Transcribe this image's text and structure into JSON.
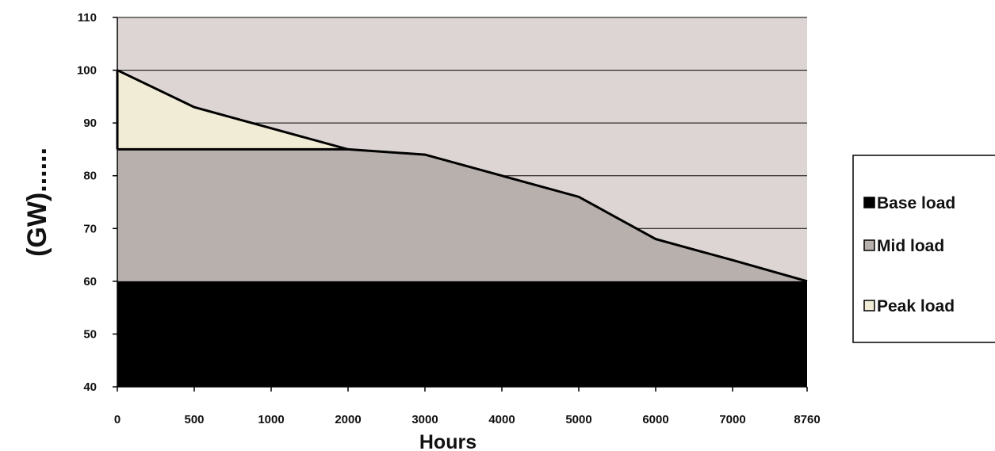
{
  "chart_data": {
    "type": "area",
    "title": "",
    "xlabel": "Hours",
    "ylabel": "(GW)......",
    "x_ticks": [
      0,
      500,
      1000,
      2000,
      3000,
      4000,
      5000,
      6000,
      7000,
      8760
    ],
    "y_ticks": [
      40,
      50,
      60,
      70,
      80,
      90,
      100,
      110
    ],
    "ylim": [
      40,
      110
    ],
    "grid": "horizontal",
    "legend_position": "right",
    "load_curve": {
      "x": [
        0,
        500,
        1000,
        2000,
        3000,
        4000,
        5000,
        6000,
        7000,
        8760
      ],
      "y": [
        100,
        93,
        89,
        85,
        84,
        80,
        76,
        68,
        64,
        60
      ]
    },
    "series": [
      {
        "name": "Base load",
        "level": 60,
        "color": "#000000"
      },
      {
        "name": "Mid load",
        "level": 85,
        "color": "#b8b0ad"
      },
      {
        "name": "Peak load",
        "level": 100,
        "color": "#f1ecd6"
      }
    ],
    "plot_background": "#dcd5d3"
  }
}
